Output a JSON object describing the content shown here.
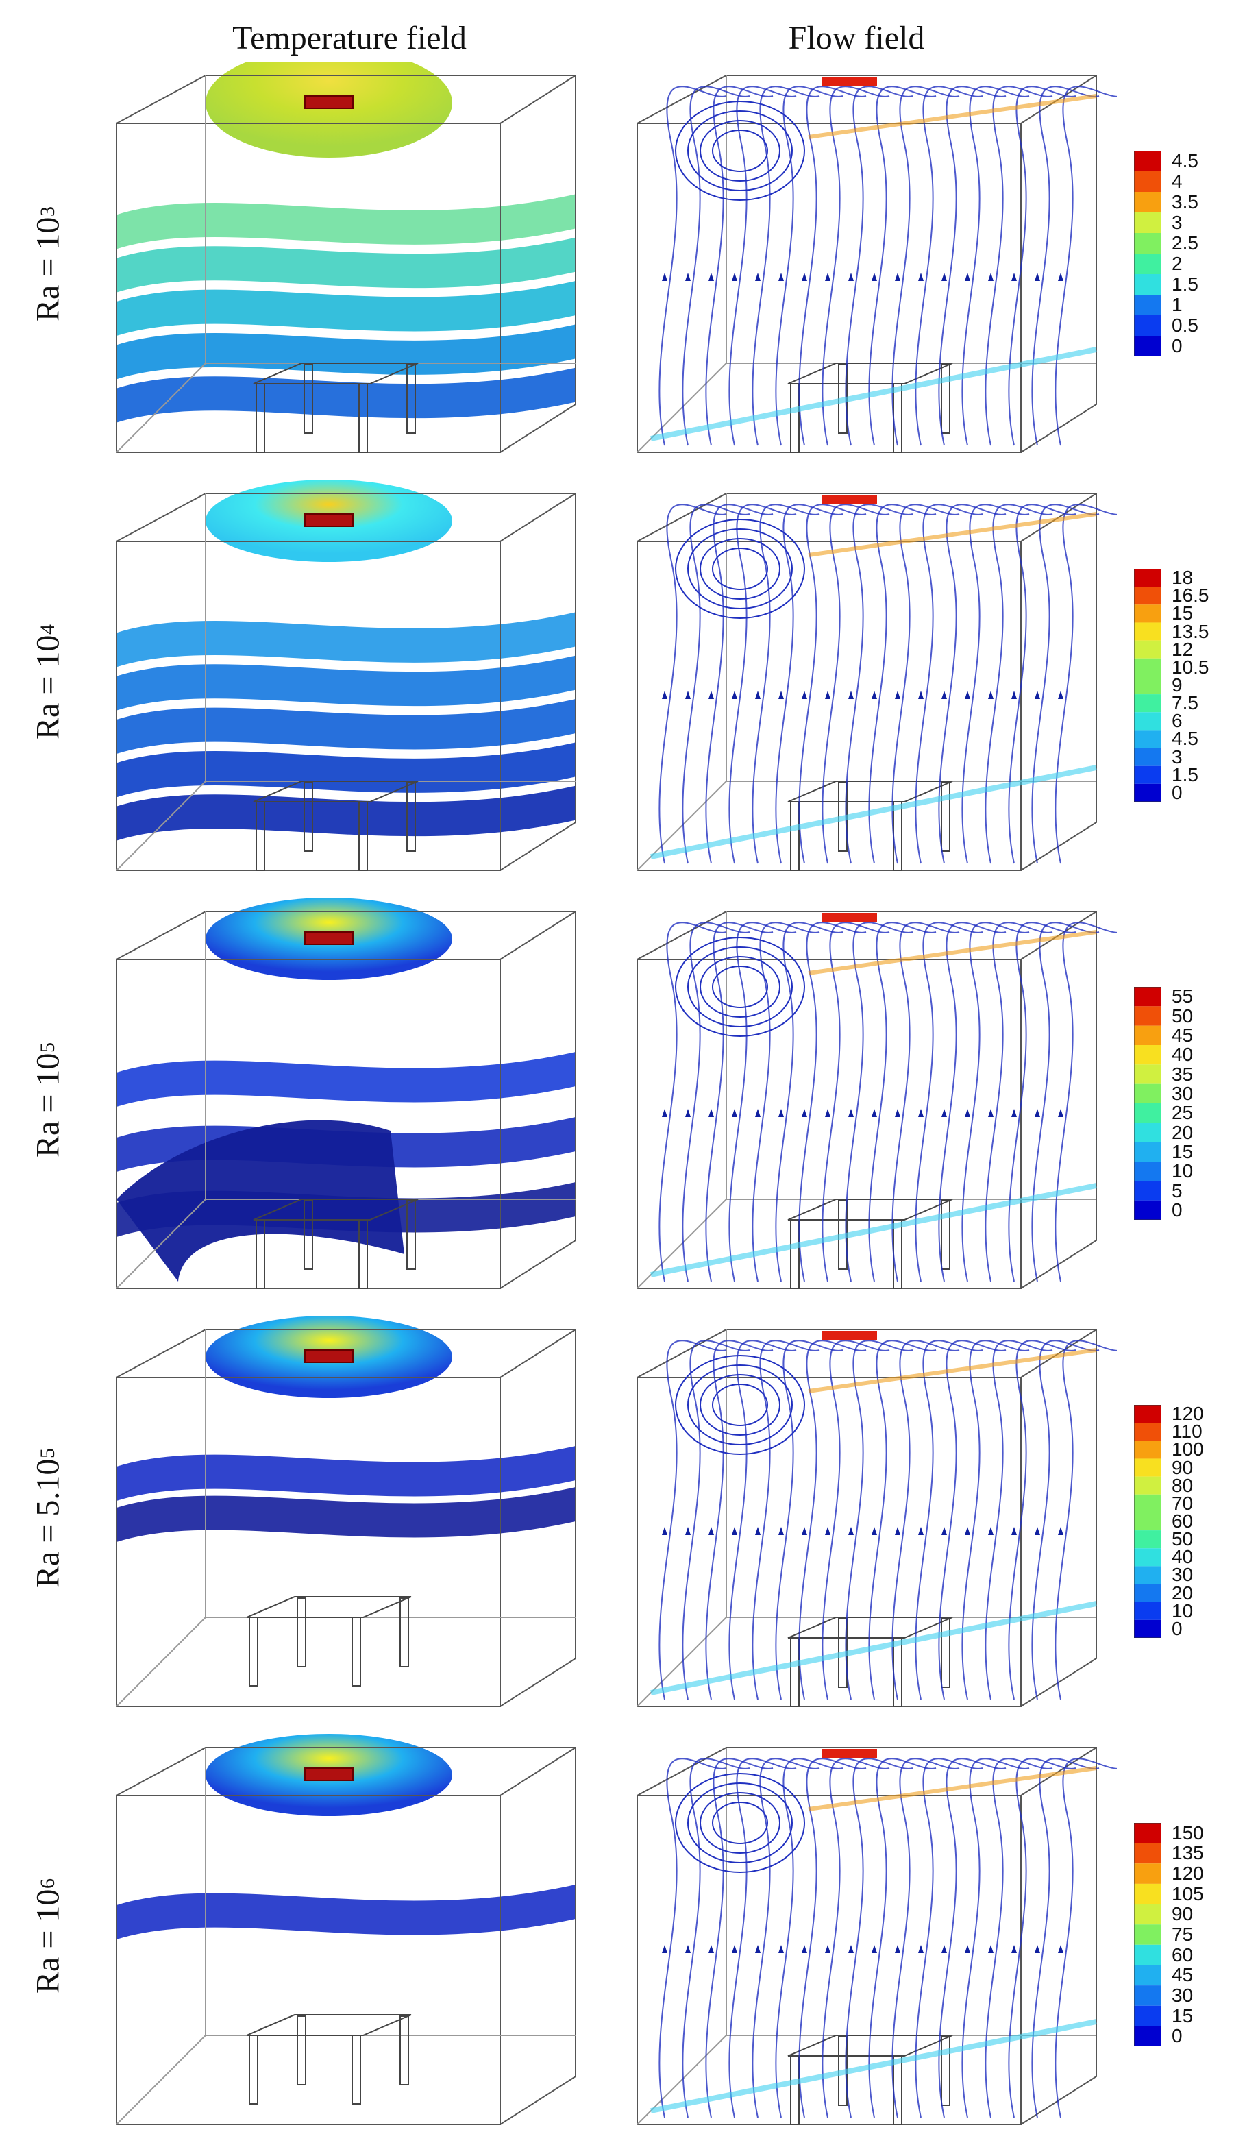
{
  "figure": {
    "col_headers": [
      "Temperature field",
      "Flow field"
    ],
    "rows": [
      {
        "ra_base": "Ra = 10",
        "ra_exp": "3",
        "colorbar": [
          "4.5",
          "4",
          "3.5",
          "3",
          "2.5",
          "2",
          "1.5",
          "1",
          "0.5",
          "0"
        ],
        "surface_colors": [
          "#c8e64a",
          "#6fe0a0",
          "#40d0c0",
          "#20b8d8",
          "#1090e0",
          "#1060d8"
        ]
      },
      {
        "ra_base": "Ra = 10",
        "ra_exp": "4",
        "colorbar": [
          "18",
          "16.5",
          "15",
          "13.5",
          "12",
          "10.5",
          "9",
          "7.5",
          "6",
          "4.5",
          "3",
          "1.5",
          "0"
        ],
        "surface_colors": [
          "#40e8f0",
          "#2098e8",
          "#1478e0",
          "#1060d8",
          "#0a3ec8",
          "#0a28b0"
        ]
      },
      {
        "ra_base": "Ra = 10",
        "ra_exp": "5",
        "colorbar": [
          "55",
          "50",
          "45",
          "40",
          "35",
          "30",
          "25",
          "20",
          "15",
          "10",
          "5",
          "0"
        ],
        "surface_colors": [
          "#2c7be0",
          "#1a3ed8",
          "#1830c0",
          "#121e98"
        ]
      },
      {
        "ra_base": "Ra = 5.10",
        "ra_exp": "5",
        "colorbar": [
          "120",
          "110",
          "100",
          "90",
          "80",
          "70",
          "60",
          "50",
          "40",
          "30",
          "20",
          "10",
          "0"
        ],
        "surface_colors": [
          "#2050e0",
          "#1a30c8",
          "#141e9c"
        ]
      },
      {
        "ra_base": "Ra = 10",
        "ra_exp": "6",
        "colorbar": [
          "150",
          "135",
          "120",
          "105",
          "90",
          "75",
          "60",
          "45",
          "30",
          "15",
          "0"
        ],
        "surface_colors": [
          "#2050e0",
          "#1a30c8"
        ]
      }
    ],
    "colormap": [
      "#0000d0",
      "#0a3cf0",
      "#1478f0",
      "#20b0f0",
      "#30e0e0",
      "#40f0a0",
      "#80f060",
      "#d0f040",
      "#f8e020",
      "#f8a010",
      "#f05008",
      "#d00000"
    ]
  }
}
